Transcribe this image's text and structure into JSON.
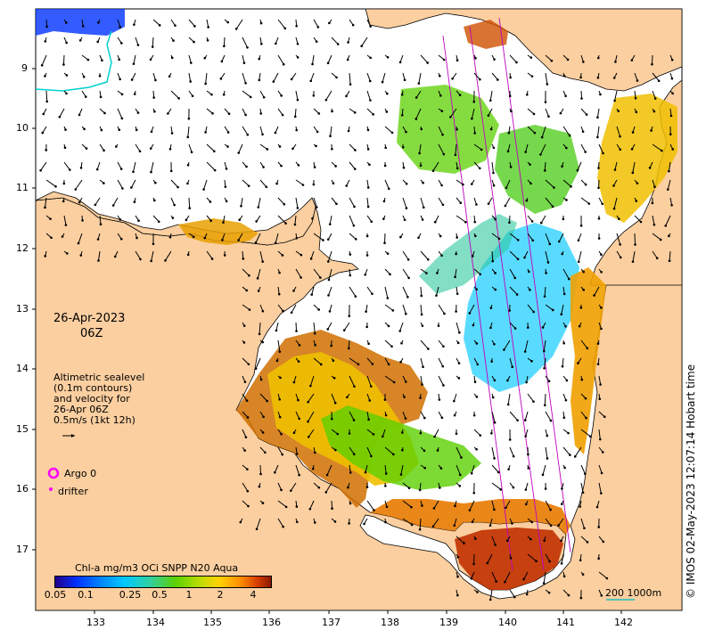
{
  "map": {
    "date": "26-Apr-2023",
    "time": "06Z",
    "info_lines": [
      "Altimetric sealevel",
      "(0.1m contours)",
      "and velocity for",
      "26-Apr 06Z",
      "0.5m/s (1kt 12h)"
    ],
    "legend": {
      "argo": "Argo 0",
      "drifter": "drifter"
    },
    "colorbar": {
      "title": "Chl-a mg/m3 OCi SNPP N20 Aqua",
      "ticks": [
        "0.05",
        "0.1",
        "0.25",
        "0.5",
        "1",
        "2",
        "4"
      ]
    },
    "lat_labels": [
      "9",
      "10",
      "11",
      "12",
      "13",
      "14",
      "15",
      "16",
      "17"
    ],
    "lon_labels": [
      "133",
      "134",
      "135",
      "136",
      "137",
      "138",
      "139",
      "140",
      "141",
      "142"
    ],
    "scale_label": "200  1000m",
    "copyright": "© IMOS 02-May-2023 12:07:14 Hobart time",
    "colors": {
      "land": "#fbcfa0",
      "ocean": "#ffffff",
      "arrow": "#000000",
      "argo": "#ff00ff",
      "track": "#c000c0"
    }
  }
}
